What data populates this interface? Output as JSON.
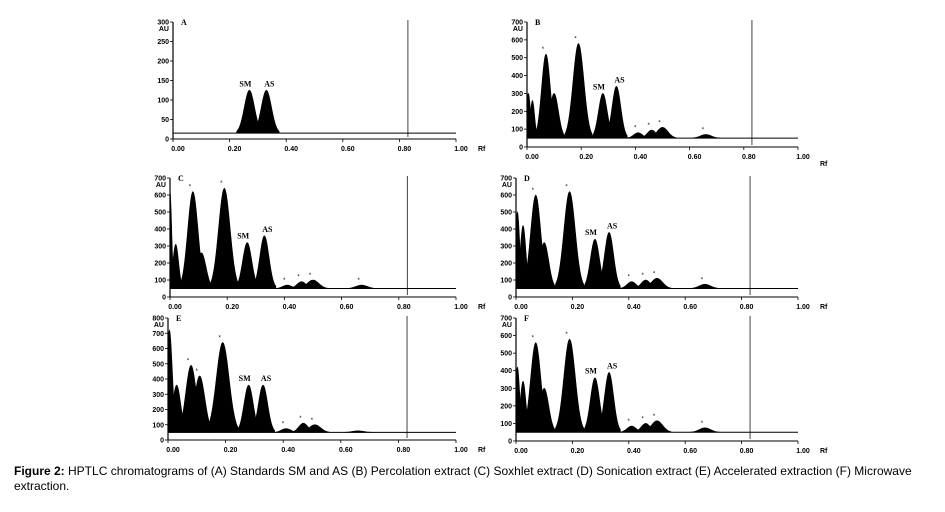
{
  "caption": {
    "label": "Figure 2:",
    "text": "HPTLC chromatograms of (A) Standards SM and AS (B) Percolation extract (C) Soxhlet extract (D) Sonication extract (E) Accelerated extraction (F) Microwave extraction."
  },
  "chart_data": [
    {
      "type": "line",
      "panel": "A",
      "xlabel": "Rf",
      "ylabel": "AU",
      "xlim": [
        0,
        1.0
      ],
      "ylim": [
        0,
        300
      ],
      "xticks": [
        "0.00",
        "0.20",
        "0.40",
        "0.60",
        "0.80",
        "1.00"
      ],
      "yticks": [
        "0",
        "50",
        "100",
        "150",
        "200",
        "250",
        "300"
      ],
      "baseline": 15,
      "front_rf": 0.83,
      "peaks": [
        {
          "rf": 0.27,
          "height": 125,
          "width": 0.018,
          "label": "SM"
        },
        {
          "rf": 0.33,
          "height": 125,
          "width": 0.018,
          "label": "AS"
        }
      ]
    },
    {
      "type": "line",
      "panel": "B",
      "xlabel": "Rf",
      "ylabel": "AU",
      "xlim": [
        0,
        1.0
      ],
      "ylim": [
        0,
        700
      ],
      "xticks": [
        "0.00",
        "0.20",
        "0.40",
        "0.60",
        "0.80",
        "1.00"
      ],
      "yticks": [
        "0",
        "100",
        "200",
        "300",
        "400",
        "500",
        "600",
        "700"
      ],
      "baseline": 50,
      "front_rf": 0.83,
      "peaks": [
        {
          "rf": 0.005,
          "height": 300,
          "width": 0.008
        },
        {
          "rf": 0.02,
          "height": 260,
          "width": 0.008
        },
        {
          "rf": 0.045,
          "height": 90,
          "width": 0.008
        },
        {
          "rf": 0.07,
          "height": 520,
          "width": 0.016,
          "star": true
        },
        {
          "rf": 0.1,
          "height": 300,
          "width": 0.016
        },
        {
          "rf": 0.19,
          "height": 580,
          "width": 0.02,
          "star": true
        },
        {
          "rf": 0.28,
          "height": 300,
          "width": 0.016,
          "label": "SM"
        },
        {
          "rf": 0.33,
          "height": 340,
          "width": 0.016,
          "label": "AS"
        },
        {
          "rf": 0.41,
          "height": 80,
          "width": 0.016,
          "star": true
        },
        {
          "rf": 0.46,
          "height": 95,
          "width": 0.016,
          "star": true
        },
        {
          "rf": 0.5,
          "height": 110,
          "width": 0.02,
          "star": true
        },
        {
          "rf": 0.66,
          "height": 70,
          "width": 0.02,
          "star": true
        }
      ]
    },
    {
      "type": "line",
      "panel": "C",
      "xlabel": "Rf",
      "ylabel": "AU",
      "xlim": [
        0,
        1.0
      ],
      "ylim": [
        0,
        700
      ],
      "xticks": [
        "0.00",
        "0.20",
        "0.40",
        "0.60",
        "0.80",
        "1.00"
      ],
      "yticks": [
        "0",
        "100",
        "200",
        "300",
        "400",
        "500",
        "600",
        "700"
      ],
      "baseline": 50,
      "front_rf": 0.83,
      "peaks": [
        {
          "rf": 0.0,
          "height": 620,
          "width": 0.006
        },
        {
          "rf": 0.02,
          "height": 310,
          "width": 0.01
        },
        {
          "rf": 0.08,
          "height": 620,
          "width": 0.018,
          "star": true
        },
        {
          "rf": 0.11,
          "height": 260,
          "width": 0.016
        },
        {
          "rf": 0.19,
          "height": 640,
          "width": 0.02,
          "star": true
        },
        {
          "rf": 0.27,
          "height": 320,
          "width": 0.016,
          "label": "SM"
        },
        {
          "rf": 0.33,
          "height": 360,
          "width": 0.016,
          "label": "AS"
        },
        {
          "rf": 0.41,
          "height": 70,
          "width": 0.016,
          "star": true
        },
        {
          "rf": 0.46,
          "height": 90,
          "width": 0.016,
          "star": true
        },
        {
          "rf": 0.5,
          "height": 100,
          "width": 0.02,
          "star": true
        },
        {
          "rf": 0.67,
          "height": 70,
          "width": 0.02,
          "star": true
        }
      ]
    },
    {
      "type": "line",
      "panel": "D",
      "xlabel": "Rf",
      "ylabel": "AU",
      "xlim": [
        0,
        1.0
      ],
      "ylim": [
        0,
        700
      ],
      "xticks": [
        "0.00",
        "0.20",
        "0.40",
        "0.60",
        "0.80",
        "1.00"
      ],
      "yticks": [
        "0",
        "100",
        "200",
        "300",
        "400",
        "500",
        "600",
        "700"
      ],
      "baseline": 50,
      "front_rf": 0.83,
      "peaks": [
        {
          "rf": 0.005,
          "height": 500,
          "width": 0.008
        },
        {
          "rf": 0.025,
          "height": 420,
          "width": 0.01
        },
        {
          "rf": 0.07,
          "height": 600,
          "width": 0.018,
          "star": true
        },
        {
          "rf": 0.1,
          "height": 320,
          "width": 0.016
        },
        {
          "rf": 0.19,
          "height": 620,
          "width": 0.02,
          "star": true
        },
        {
          "rf": 0.28,
          "height": 340,
          "width": 0.016,
          "label": "SM"
        },
        {
          "rf": 0.33,
          "height": 380,
          "width": 0.016,
          "label": "AS"
        },
        {
          "rf": 0.41,
          "height": 90,
          "width": 0.016,
          "star": true
        },
        {
          "rf": 0.46,
          "height": 100,
          "width": 0.016,
          "star": true
        },
        {
          "rf": 0.5,
          "height": 110,
          "width": 0.02,
          "star": true
        },
        {
          "rf": 0.67,
          "height": 75,
          "width": 0.02,
          "star": true
        }
      ]
    },
    {
      "type": "line",
      "panel": "E",
      "xlabel": "Rf",
      "ylabel": "AU",
      "xlim": [
        0,
        1.0
      ],
      "ylim": [
        0,
        800
      ],
      "xticks": [
        "0.00",
        "0.20",
        "0.40",
        "0.60",
        "0.80",
        "1.00"
      ],
      "yticks": [
        "0",
        "100",
        "200",
        "300",
        "400",
        "500",
        "600",
        "700",
        "800"
      ],
      "baseline": 50,
      "front_rf": 0.83,
      "peaks": [
        {
          "rf": 0.005,
          "height": 720,
          "width": 0.01
        },
        {
          "rf": 0.03,
          "height": 360,
          "width": 0.014
        },
        {
          "rf": 0.08,
          "height": 490,
          "width": 0.018,
          "star": true
        },
        {
          "rf": 0.11,
          "height": 420,
          "width": 0.018,
          "star": true
        },
        {
          "rf": 0.19,
          "height": 640,
          "width": 0.022,
          "star": true
        },
        {
          "rf": 0.28,
          "height": 360,
          "width": 0.016,
          "label": "SM"
        },
        {
          "rf": 0.33,
          "height": 360,
          "width": 0.016,
          "label": "AS"
        },
        {
          "rf": 0.41,
          "height": 75,
          "width": 0.016,
          "star": true
        },
        {
          "rf": 0.47,
          "height": 110,
          "width": 0.016,
          "star": true
        },
        {
          "rf": 0.51,
          "height": 100,
          "width": 0.02,
          "star": true
        },
        {
          "rf": 0.66,
          "height": 60,
          "width": 0.02
        }
      ]
    },
    {
      "type": "line",
      "panel": "F",
      "xlabel": "Rf",
      "ylabel": "AU",
      "xlim": [
        0,
        1.0
      ],
      "ylim": [
        0,
        700
      ],
      "xticks": [
        "0.00",
        "0.20",
        "0.40",
        "0.60",
        "0.80",
        "1.00"
      ],
      "yticks": [
        "0",
        "100",
        "200",
        "300",
        "400",
        "500",
        "600",
        "700"
      ],
      "baseline": 50,
      "front_rf": 0.83,
      "peaks": [
        {
          "rf": 0.005,
          "height": 420,
          "width": 0.008
        },
        {
          "rf": 0.025,
          "height": 340,
          "width": 0.01
        },
        {
          "rf": 0.07,
          "height": 560,
          "width": 0.018,
          "star": true
        },
        {
          "rf": 0.1,
          "height": 300,
          "width": 0.016
        },
        {
          "rf": 0.19,
          "height": 580,
          "width": 0.02,
          "star": true
        },
        {
          "rf": 0.28,
          "height": 360,
          "width": 0.016,
          "label": "SM"
        },
        {
          "rf": 0.33,
          "height": 390,
          "width": 0.016,
          "label": "AS"
        },
        {
          "rf": 0.41,
          "height": 85,
          "width": 0.016,
          "star": true
        },
        {
          "rf": 0.46,
          "height": 100,
          "width": 0.016,
          "star": true
        },
        {
          "rf": 0.5,
          "height": 115,
          "width": 0.02,
          "star": true
        },
        {
          "rf": 0.67,
          "height": 75,
          "width": 0.02,
          "star": true
        }
      ]
    }
  ]
}
